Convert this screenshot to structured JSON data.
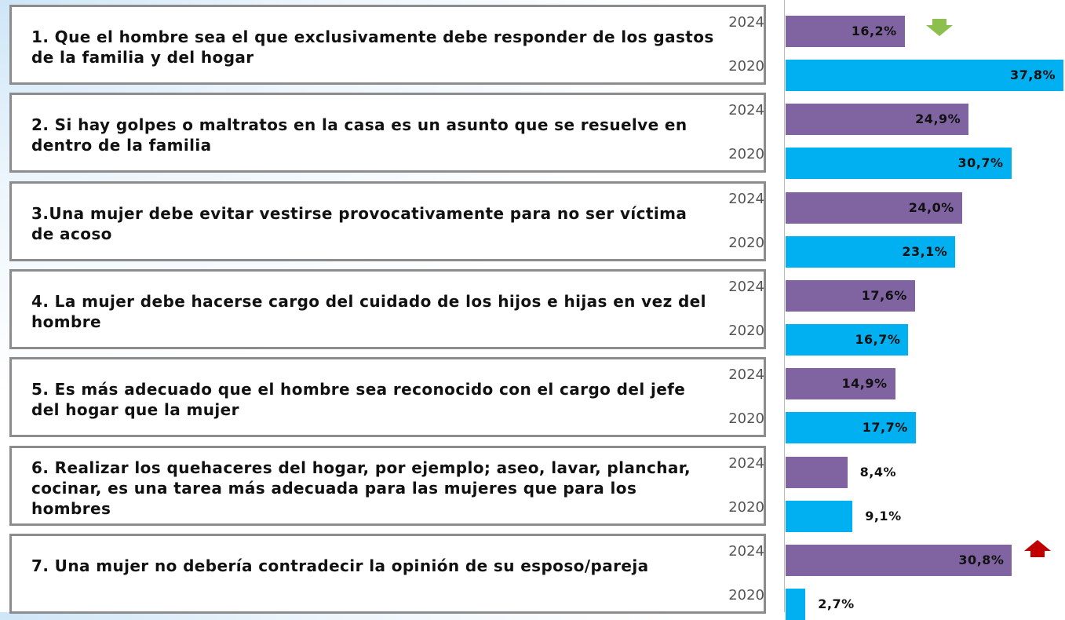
{
  "chart_data": {
    "type": "bar",
    "orientation": "horizontal",
    "categories": [
      "1. Que el hombre sea el que exclusivamente debe responder de los gastos de la familia y del hogar",
      "2. Si hay golpes o maltratos en la casa es un asunto que se resuelve en dentro de la familia",
      "3.Una mujer debe evitar vestirse provocativamente para no ser víctima de acoso",
      "4. La mujer debe hacerse cargo del cuidado de los hijos e hijas en vez del hombre",
      "5. Es más adecuado que el hombre sea reconocido con el cargo del jefe del hogar que la mujer",
      "6. Realizar los quehaceres del hogar, por ejemplo; aseo, lavar, planchar, cocinar, es una tarea más adecuada para las mujeres que para los hombres",
      "7. Una mujer no debería contradecir la opinión de su esposo/pareja"
    ],
    "series": [
      {
        "name": "2024",
        "color": "#8064a2",
        "values": [
          16.2,
          24.9,
          24.0,
          17.6,
          14.9,
          8.4,
          30.8
        ],
        "value_labels": [
          "16,2%",
          "24,9%",
          "24,0%",
          "17,6%",
          "14,9%",
          "8,4%",
          "30,8%"
        ]
      },
      {
        "name": "2020",
        "color": "#00b0f0",
        "values": [
          37.8,
          30.7,
          23.1,
          16.7,
          17.7,
          9.1,
          2.7
        ],
        "value_labels": [
          "37,8%",
          "30,7%",
          "23,1%",
          "16,7%",
          "17,7%",
          "9,1%",
          "2,7%"
        ]
      }
    ]
  }
}
